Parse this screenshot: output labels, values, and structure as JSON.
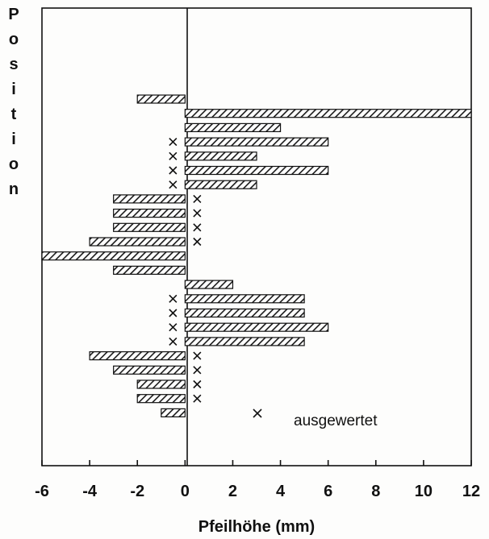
{
  "chart_data": {
    "type": "bar",
    "orientation": "horizontal",
    "ylabel": "Position",
    "xlabel": "Pfeilhöhe (mm)",
    "xlim": [
      -6,
      12
    ],
    "xticks": [
      "-6",
      "-4",
      "-2",
      "0",
      "2",
      "4",
      "6",
      "8",
      "10",
      "12"
    ],
    "bar_pattern": "hatched",
    "legend": {
      "symbol": "×",
      "label": "ausgewertet",
      "position": "lower-right"
    },
    "bars": [
      {
        "value": -2,
        "evaluated": false
      },
      {
        "value": 12,
        "evaluated": false
      },
      {
        "value": 4,
        "evaluated": false
      },
      {
        "value": 6,
        "evaluated": true
      },
      {
        "value": 3,
        "evaluated": true
      },
      {
        "value": 6,
        "evaluated": true
      },
      {
        "value": 3,
        "evaluated": true
      },
      {
        "value": -3,
        "evaluated": true
      },
      {
        "value": -3,
        "evaluated": true
      },
      {
        "value": -3,
        "evaluated": true
      },
      {
        "value": -4,
        "evaluated": true
      },
      {
        "value": -6,
        "evaluated": false
      },
      {
        "value": -3,
        "evaluated": false
      },
      {
        "value": 2,
        "evaluated": false
      },
      {
        "value": 5,
        "evaluated": true
      },
      {
        "value": 5,
        "evaluated": true
      },
      {
        "value": 6,
        "evaluated": true
      },
      {
        "value": 5,
        "evaluated": true
      },
      {
        "value": -4,
        "evaluated": true
      },
      {
        "value": -3,
        "evaluated": true
      },
      {
        "value": -2,
        "evaluated": true
      },
      {
        "value": -2,
        "evaluated": true
      },
      {
        "value": -1,
        "evaluated": false
      }
    ]
  }
}
